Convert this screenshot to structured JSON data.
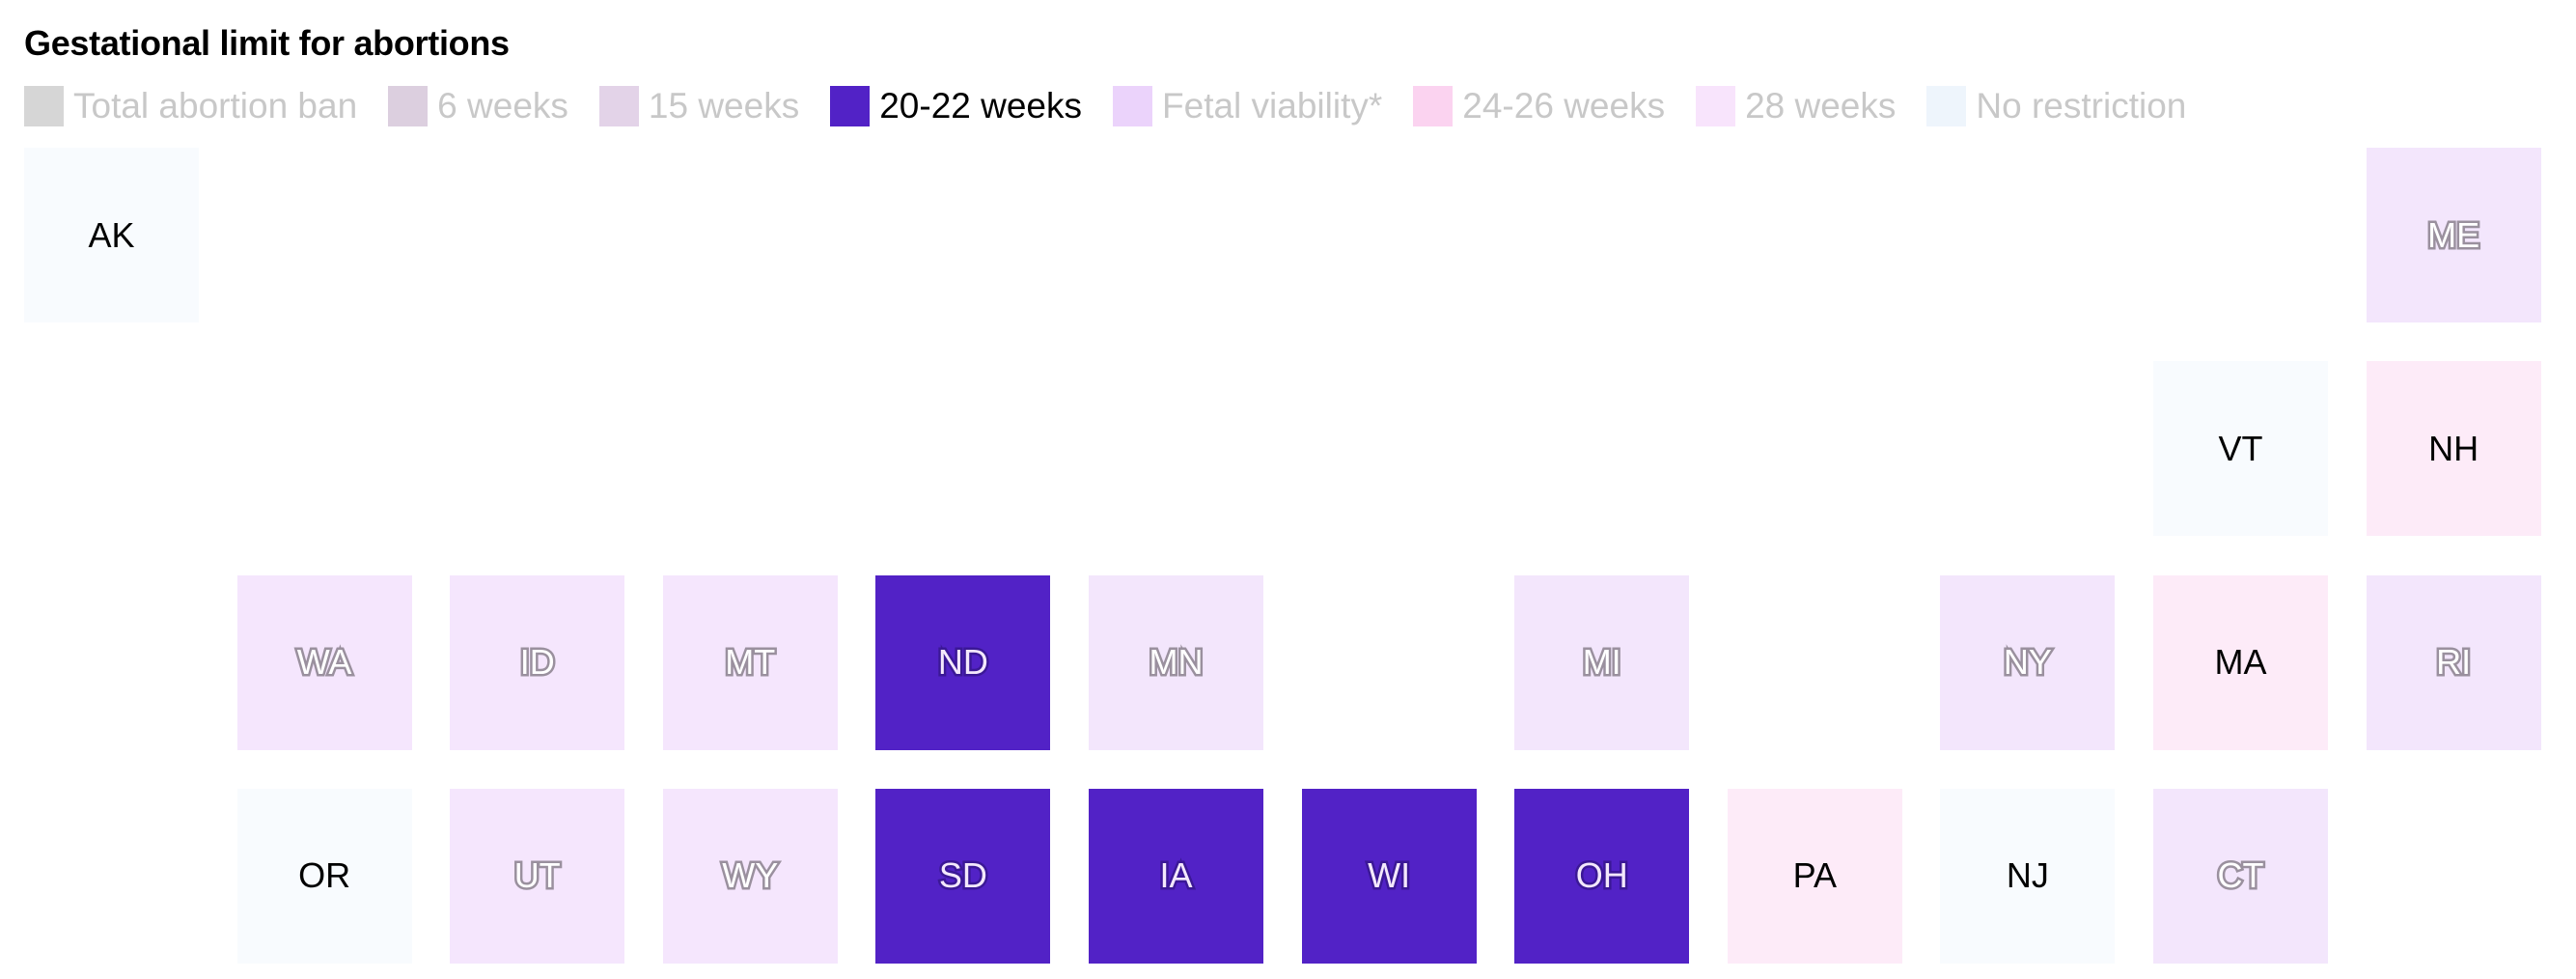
{
  "chart_data": {
    "type": "heatmap",
    "title": "Gestational limit for abortions",
    "active_category": "20-22 weeks",
    "legend": [
      {
        "label": "Total abortion ban",
        "color": "#d6d6d6"
      },
      {
        "label": "6 weeks",
        "color": "#dccfdf"
      },
      {
        "label": "15 weeks",
        "color": "#e3d3e8"
      },
      {
        "label": "20-22 weeks",
        "color": "#5222c6"
      },
      {
        "label": "Fetal viability*",
        "color": "#ebd3fb"
      },
      {
        "label": "24-26 weeks",
        "color": "#fbd3f0"
      },
      {
        "label": "28 weeks",
        "color": "#f8e4fc"
      },
      {
        "label": "No restriction",
        "color": "#eef5fc"
      }
    ],
    "states": [
      {
        "abbr": "AK",
        "row": 0,
        "col": 0,
        "color": "#f8fbfe",
        "style": "plain"
      },
      {
        "abbr": "ME",
        "row": 0,
        "col": 11,
        "color": "#f3e6fc",
        "style": "out"
      },
      {
        "abbr": "VT",
        "row": 1,
        "col": 10,
        "color": "#f8fbfe",
        "style": "plain"
      },
      {
        "abbr": "NH",
        "row": 1,
        "col": 11,
        "color": "#fdebf8",
        "style": "plain"
      },
      {
        "abbr": "WA",
        "row": 2,
        "col": 1,
        "color": "#f5e6fd",
        "style": "out"
      },
      {
        "abbr": "ID",
        "row": 2,
        "col": 2,
        "color": "#f5e6fd",
        "style": "out"
      },
      {
        "abbr": "MT",
        "row": 2,
        "col": 3,
        "color": "#f5e6fd",
        "style": "out"
      },
      {
        "abbr": "ND",
        "row": 2,
        "col": 4,
        "color": "#5222c6",
        "style": "dark"
      },
      {
        "abbr": "MN",
        "row": 2,
        "col": 5,
        "color": "#f3e6fc",
        "style": "out"
      },
      {
        "abbr": "MI",
        "row": 2,
        "col": 7,
        "color": "#f3e6fc",
        "style": "out"
      },
      {
        "abbr": "NY",
        "row": 2,
        "col": 9,
        "color": "#f3e6fc",
        "style": "out"
      },
      {
        "abbr": "MA",
        "row": 2,
        "col": 10,
        "color": "#fdebf8",
        "style": "plain"
      },
      {
        "abbr": "RI",
        "row": 2,
        "col": 11,
        "color": "#f3e6fc",
        "style": "out"
      },
      {
        "abbr": "OR",
        "row": 3,
        "col": 1,
        "color": "#f8fbfe",
        "style": "plain"
      },
      {
        "abbr": "UT",
        "row": 3,
        "col": 2,
        "color": "#f5e6fd",
        "style": "out"
      },
      {
        "abbr": "WY",
        "row": 3,
        "col": 3,
        "color": "#f5e6fd",
        "style": "out"
      },
      {
        "abbr": "SD",
        "row": 3,
        "col": 4,
        "color": "#5222c6",
        "style": "dark"
      },
      {
        "abbr": "IA",
        "row": 3,
        "col": 5,
        "color": "#5222c6",
        "style": "dark"
      },
      {
        "abbr": "WI",
        "row": 3,
        "col": 6,
        "color": "#5222c6",
        "style": "dark"
      },
      {
        "abbr": "OH",
        "row": 3,
        "col": 7,
        "color": "#5222c6",
        "style": "dark"
      },
      {
        "abbr": "PA",
        "row": 3,
        "col": 8,
        "color": "#fdebf8",
        "style": "plain"
      },
      {
        "abbr": "NJ",
        "row": 3,
        "col": 9,
        "color": "#f8fbfe",
        "style": "plain"
      },
      {
        "abbr": "CT",
        "row": 3,
        "col": 10,
        "color": "#f3e6fc",
        "style": "out"
      }
    ]
  }
}
